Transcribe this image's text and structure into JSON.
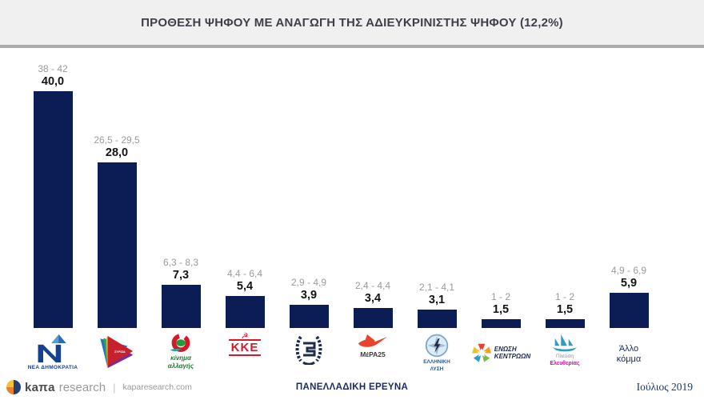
{
  "title": "ΠΡΟΘΕΣΗ ΨΗΦΟΥ ΜΕ ΑΝΑΓΩΓΗ ΤΗΣ ΑΔΙΕΥΚΡΙΝΙΣΤΗΣ ΨΗΦΟΥ (12,2%)",
  "chart_data": {
    "type": "bar",
    "title": "ΠΡΟΘΕΣΗ ΨΗΦΟΥ ΜΕ ΑΝΑΓΩΓΗ ΤΗΣ ΑΔΙΕΥΚΡΙΝΙΣΤΗΣ ΨΗΦΟΥ (12,2%)",
    "categories": [
      "ΝΕΑ ΔΗΜΟΚΡΑΤΙΑ",
      "ΣΥΡΙΖΑ",
      "ΚΙΝΗΜΑ ΑΛΛΑΓΗΣ",
      "ΚΚΕ",
      "ΧΡΥΣΗ ΑΥΓΗ",
      "ΜέΡΑ25",
      "ΕΛΛΗΝΙΚΗ ΛΥΣΗ",
      "ΕΝΩΣΗ ΚΕΝΤΡΩΩΝ",
      "ΠΛΕΥΣΗ ΕΛΕΥΘΕΡΙΑΣ",
      "Άλλο κόμμα"
    ],
    "values": [
      40.0,
      28.0,
      7.3,
      5.4,
      3.9,
      3.4,
      3.1,
      1.5,
      1.5,
      5.9
    ],
    "range_labels": [
      "38 - 42",
      "26,5 - 29,5",
      "6,3 - 8,3",
      "4,4 - 6,4",
      "2,9 - 4,9",
      "2,4 - 4,4",
      "2,1 - 4,1",
      "1 - 2",
      "1 - 2",
      "4,9 - 6,9"
    ],
    "value_labels": [
      "40,0",
      "28,0",
      "7,3",
      "5,4",
      "3,9",
      "3,4",
      "3,1",
      "1,5",
      "1,5",
      "5,9"
    ],
    "bar_color": "#0c1c54",
    "ylim": [
      0,
      47
    ],
    "grid": false,
    "legend": false
  },
  "parties": [
    {
      "id": "nd",
      "name": "ΝΕΑ ΔΗΜΟΚΡΑΤΙΑ",
      "range": "38 - 42",
      "value_label": "40,0",
      "value": 40.0,
      "caption": "ΝΕΑ ΔΗΜΟΚΡΑΤΙΑ"
    },
    {
      "id": "syriza",
      "name": "ΣΥΡΙΖΑ",
      "range": "26,5 - 29,5",
      "value_label": "28,0",
      "value": 28.0,
      "caption": "ΣΥΡΙΖΑ"
    },
    {
      "id": "kinal",
      "name": "ΚΙΝΗΜΑ ΑΛΛΑΓΗΣ",
      "range": "6,3 - 8,3",
      "value_label": "7,3",
      "value": 7.3,
      "caption": "κίνημα",
      "caption2": "αλλαγής"
    },
    {
      "id": "kke",
      "name": "ΚΚΕ",
      "range": "4,4 - 6,4",
      "value_label": "5,4",
      "value": 5.4,
      "caption": "ΚΚΕ"
    },
    {
      "id": "xa",
      "name": "ΧΡΥΣΗ ΑΥΓΗ",
      "range": "2,9 - 4,9",
      "value_label": "3,9",
      "value": 3.9,
      "caption": ""
    },
    {
      "id": "mera25",
      "name": "ΜέΡΑ25",
      "range": "2,4 - 4,4",
      "value_label": "3,4",
      "value": 3.4,
      "caption": "ΜέΡΑ25"
    },
    {
      "id": "ellyn",
      "name": "ΕΛΛΗΝΙΚΗ ΛΥΣΗ",
      "range": "2,1 - 4,1",
      "value_label": "3,1",
      "value": 3.1,
      "caption": "ΕΛΛΗΝΙΚΗ",
      "caption2": "ΛΥΣΗ"
    },
    {
      "id": "enkentr",
      "name": "ΕΝΩΣΗ ΚΕΝΤΡΩΩΝ",
      "range": "1 - 2",
      "value_label": "1,5",
      "value": 1.5,
      "caption": "ΕΝΩΣΗ",
      "caption2": "ΚΕΝΤΡΩΩΝ"
    },
    {
      "id": "plefsi",
      "name": "ΠΛΕΥΣΗ ΕΛΕΥΘΕΡΙΑΣ",
      "range": "1 - 2",
      "value_label": "1,5",
      "value": 1.5,
      "caption": "Πλεύση",
      "caption2": "Ελευθερίας"
    },
    {
      "id": "other",
      "name": "Άλλο κόμμα",
      "range": "4,9 - 6,9",
      "value_label": "5,9",
      "value": 5.9,
      "caption": "Άλλο",
      "caption2": "κόμμα"
    }
  ],
  "footer": {
    "brand_bold": "kaπa",
    "brand_light": "research",
    "separator": "|",
    "site": "kaparesearch.com",
    "center": "ΠΑΝΕΛΛΑΔΙΚΗ ΕΡΕΥΝΑ",
    "right": "Ιούλιος 2019"
  },
  "colors": {
    "bar": "#0c1c54",
    "range_label": "#9b9b9b",
    "header_bg": "#f0f0f0",
    "footer_navy": "#1b2a5e",
    "kke_red": "#d7182a",
    "mera_red": "#e8452c",
    "kinal_green": "#1f7a33",
    "plefsi_magenta": "#c4119d"
  }
}
